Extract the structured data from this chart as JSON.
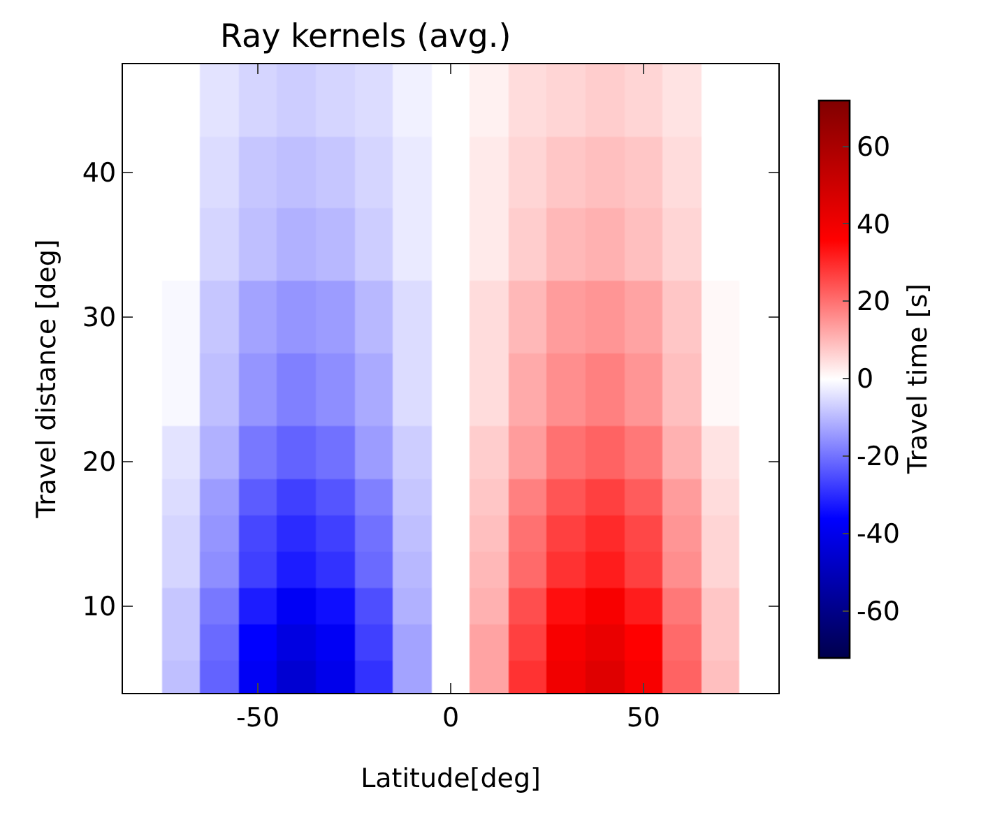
{
  "chart_data": {
    "type": "heatmap",
    "title": "Ray kernels (avg.)",
    "xlabel": "Latitude[deg]",
    "ylabel": "Travel distance [deg]",
    "clabel": "Travel time [s]",
    "x": [
      -80,
      -70,
      -60,
      -50,
      -40,
      -30,
      -20,
      -10,
      0,
      10,
      20,
      30,
      40,
      50,
      60,
      70,
      80
    ],
    "y": [
      5,
      7.5,
      10,
      12.5,
      15,
      17.5,
      20,
      25,
      30,
      35,
      40,
      45
    ],
    "cells": [
      [
        0,
        -9,
        -22,
        -38,
        -45,
        -40,
        -29,
        -13,
        0,
        13,
        29,
        40,
        45,
        38,
        22,
        9,
        0
      ],
      [
        0,
        -8,
        -21,
        -36,
        -42,
        -38,
        -27,
        -13,
        0,
        13,
        27,
        38,
        42,
        36,
        21,
        8,
        0
      ],
      [
        0,
        -8,
        -19,
        -32,
        -38,
        -34,
        -25,
        -11,
        0,
        11,
        25,
        34,
        38,
        32,
        19,
        8,
        0
      ],
      [
        0,
        -6,
        -16,
        -27,
        -32,
        -29,
        -21,
        -10,
        0,
        10,
        21,
        29,
        32,
        27,
        16,
        6,
        0
      ],
      [
        0,
        -6,
        -15,
        -26,
        -30,
        -27,
        -20,
        -9,
        0,
        9,
        20,
        27,
        30,
        26,
        15,
        6,
        0
      ],
      [
        0,
        -5,
        -14,
        -23,
        -27,
        -24,
        -18,
        -8,
        0,
        8,
        18,
        24,
        27,
        23,
        14,
        5,
        0
      ],
      [
        0,
        -4,
        -11,
        -19,
        -22,
        -20,
        -14,
        -7,
        0,
        7,
        14,
        20,
        22,
        19,
        11,
        4,
        0
      ],
      [
        0,
        -1,
        -9,
        -15,
        -18,
        -16,
        -12,
        -5,
        0,
        5,
        12,
        16,
        18,
        15,
        9,
        1,
        0
      ],
      [
        0,
        -1,
        -8,
        -13,
        -15,
        -14,
        -10,
        -5,
        0,
        5,
        10,
        14,
        15,
        13,
        8,
        1,
        0
      ],
      [
        0,
        0,
        -6,
        -9,
        -11,
        -10,
        -7,
        -3,
        0,
        3,
        7,
        10,
        11,
        9,
        6,
        0,
        0
      ],
      [
        0,
        0,
        -5,
        -8,
        -9,
        -8,
        -6,
        -3,
        0,
        3,
        6,
        8,
        9,
        8,
        5,
        0,
        0
      ],
      [
        0,
        0,
        -4,
        -6,
        -7,
        -6,
        -5,
        -2,
        0,
        2,
        5,
        6,
        7,
        6,
        4,
        0,
        0
      ]
    ],
    "xlim": [
      -85,
      85
    ],
    "xticks": [
      -50,
      0,
      50
    ],
    "ylim": [
      4,
      47.5
    ],
    "yticks": [
      10,
      20,
      30,
      40
    ],
    "clim": [
      -72,
      72
    ],
    "cticks": [
      -60,
      -40,
      -20,
      0,
      20,
      40,
      60
    ]
  }
}
